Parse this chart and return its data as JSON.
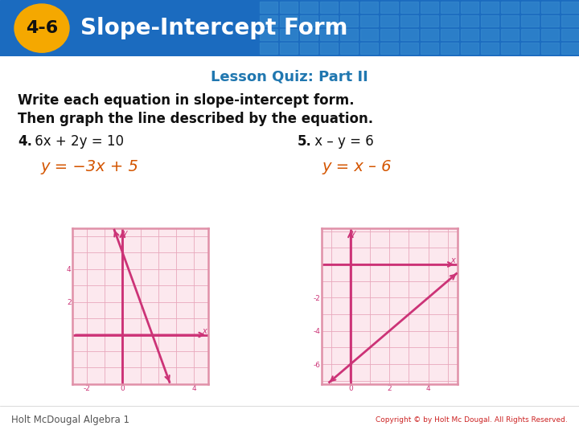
{
  "title_badge": "4-6",
  "title_text": "Slope-Intercept Form",
  "subtitle": "Lesson Quiz: Part II",
  "instructions_line1": "Write each equation in slope-intercept form.",
  "instructions_line2": "Then graph the line described by the equation.",
  "problem4_label": "4.",
  "problem4_eq": " 6x + 2y = 10",
  "problem5_label": "5.",
  "problem5_eq": " x – y = 6",
  "problem4_answer": "y = −3x + 5",
  "problem5_answer": "y = x – 6",
  "footer_left": "Holt McDougal Algebra 1",
  "footer_right": "Copyright © by Holt Mc Dougal. All Rights Reserved.",
  "header_bg": "#1b6bbf",
  "badge_color": "#f5a800",
  "title_color": "#ffffff",
  "subtitle_color": "#2077b0",
  "instruction_color": "#111111",
  "problem_color": "#111111",
  "answer_color": "#d45500",
  "graph_border": "#e090a8",
  "graph_bg": "#fce8ee",
  "graph_line_color": "#cc3377",
  "graph_axis_color": "#cc3377",
  "graph_grid_color": "#e8a8bc",
  "footer_color": "#555555",
  "bg_color": "#ffffff",
  "tile_color": "#3a8fd0"
}
